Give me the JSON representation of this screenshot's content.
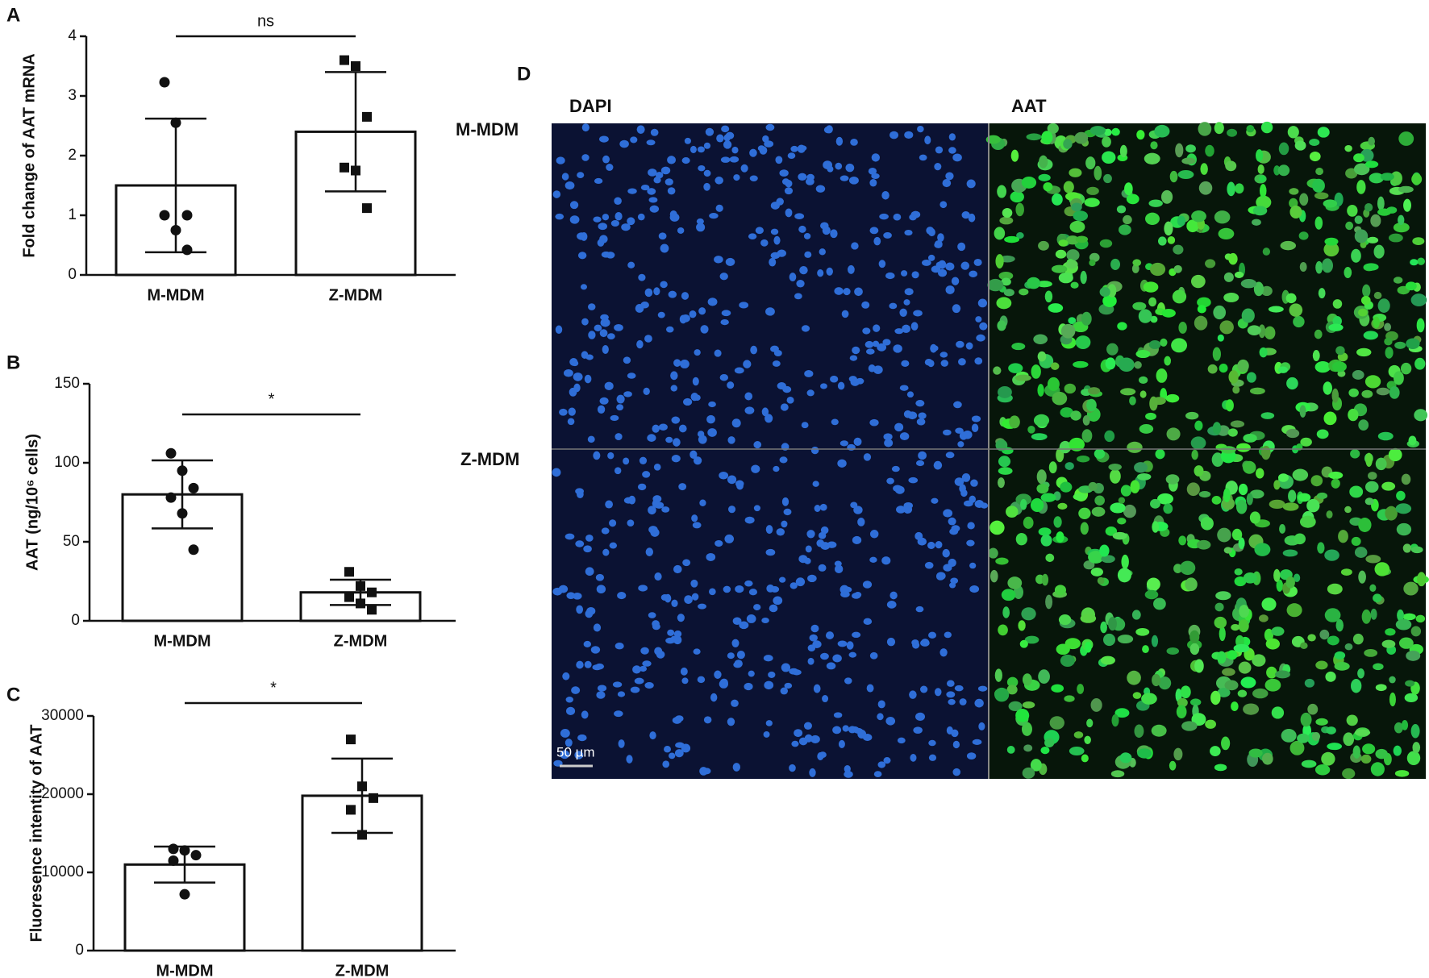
{
  "chart_data": [
    {
      "type": "bar",
      "panel": "A",
      "ylabel": "Fold change of AAT mRNA",
      "categories": [
        "M-MDM",
        "Z-MDM"
      ],
      "values": [
        1.5,
        2.4
      ],
      "errors": [
        1.12,
        1.0
      ],
      "points": [
        [
          3.23,
          2.55,
          1.0,
          1.0,
          0.75,
          0.42
        ],
        [
          3.6,
          3.5,
          2.65,
          1.8,
          1.75,
          1.12
        ]
      ],
      "markers": [
        "circle",
        "square"
      ],
      "color": "#ffffff",
      "ylim": [
        0,
        4
      ],
      "yticks": [
        0,
        1,
        2,
        3,
        4
      ],
      "annotation": "ns"
    },
    {
      "type": "bar",
      "panel": "B",
      "ylabel": "AAT (ng/10⁶ cells)",
      "categories": [
        "M-MDM",
        "Z-MDM"
      ],
      "values": [
        80,
        18
      ],
      "errors": [
        21.5,
        8
      ],
      "points": [
        [
          106,
          95,
          84,
          78,
          68,
          45
        ],
        [
          31,
          22,
          18,
          15,
          11,
          7
        ]
      ],
      "markers": [
        "circle",
        "square"
      ],
      "color": "#ffffff",
      "ylim": [
        0,
        150
      ],
      "yticks": [
        0,
        50,
        100,
        150
      ],
      "annotation": "*"
    },
    {
      "type": "bar",
      "panel": "C",
      "ylabel": "Fluoresence intentity of AAT",
      "categories": [
        "M-MDM",
        "Z-MDM"
      ],
      "values": [
        11000,
        19800
      ],
      "errors": [
        2300,
        4750
      ],
      "points": [
        [
          13000,
          12800,
          12200,
          11500,
          7200
        ],
        [
          27000,
          21000,
          19500,
          18000,
          14800
        ]
      ],
      "markers": [
        "circle",
        "square"
      ],
      "color": "#ffffff",
      "ylim": [
        0,
        30000
      ],
      "yticks": [
        0,
        10000,
        20000,
        30000
      ],
      "annotation": "*"
    }
  ],
  "panel_d": {
    "label": "D",
    "columns": [
      "DAPI",
      "AAT"
    ],
    "rows": [
      "M-MDM",
      "Z-MDM"
    ],
    "scale_bar": "50 µm"
  }
}
